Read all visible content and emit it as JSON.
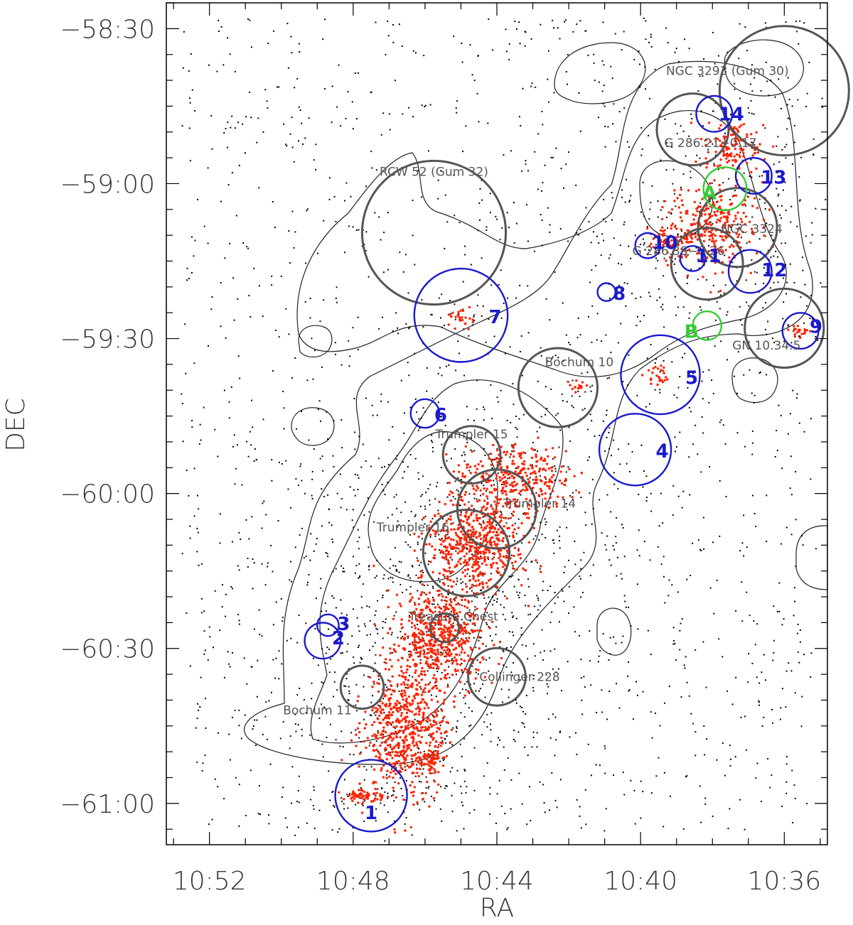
{
  "chart_data": {
    "type": "scatter",
    "xlabel": "RA",
    "ylabel": "DEC",
    "x_ticks": [
      "10:52",
      "10:48",
      "10:44",
      "10:40",
      "10:36"
    ],
    "x_tick_values_min": [
      652,
      648,
      644,
      640,
      636
    ],
    "y_ticks": [
      "−58:30",
      "−59:00",
      "−59:30",
      "−60:00",
      "−60:30",
      "−61:00"
    ],
    "y_tick_values_min": [
      -3510,
      -3540,
      -3570,
      -3600,
      -3630,
      -3660
    ],
    "xlim_min": [
      653.2,
      634.8
    ],
    "ylim_min": [
      -3668,
      -3505
    ],
    "x_axis_reversed": true,
    "colors": {
      "field_points": "#000000",
      "member_points": "#ff2200",
      "numbered_regions": "#1a1acc",
      "named_regions": "#555555",
      "green_regions": "#33cc33",
      "contours": "#222222"
    },
    "named_regions": [
      {
        "label": "NGC 3293 (Gum 30)",
        "ra_min": 636.0,
        "dec_min": -3522.0,
        "r_min": 1.8
      },
      {
        "label": "G 286.21+0.17",
        "ra_min": 638.55,
        "dec_min": -3529.5,
        "r_min": 1.0
      },
      {
        "label": "RCW 52 (Gum 32)",
        "ra_min": 645.75,
        "dec_min": -3549.5,
        "r_min": 2.0
      },
      {
        "label": "NGC 3324",
        "ra_min": 637.3,
        "dec_min": -3548.5,
        "r_min": 1.1
      },
      {
        "label": "G 286.38−0.26",
        "ra_min": 638.15,
        "dec_min": -3555.5,
        "r_min": 1.0
      },
      {
        "label": "GN 10.34.5",
        "ra_min": 636.0,
        "dec_min": -3568.0,
        "r_min": 1.1
      },
      {
        "label": "Bochum 10",
        "ra_min": 642.3,
        "dec_min": -3579.5,
        "r_min": 1.1
      },
      {
        "label": "Trumpler 15",
        "ra_min": 644.7,
        "dec_min": -3592.5,
        "r_min": 0.8
      },
      {
        "label": "Trumpler 14",
        "ra_min": 644.0,
        "dec_min": -3603.0,
        "r_min": 1.1
      },
      {
        "label": "Trumpler 16",
        "ra_min": 644.85,
        "dec_min": -3611.5,
        "r_min": 1.2
      },
      {
        "label": "Treasure Chest",
        "ra_min": 645.45,
        "dec_min": -3626.0,
        "r_min": 0.4
      },
      {
        "label": "Collinger 228",
        "ra_min": 644.0,
        "dec_min": -3635.5,
        "r_min": 0.8
      },
      {
        "label": "Bochum 11",
        "ra_min": 647.75,
        "dec_min": -3637.5,
        "r_min": 0.6
      }
    ],
    "numbered_regions": [
      {
        "label": "1",
        "ra_min": 647.5,
        "dec_min": -3658.5,
        "r_min": 1.0
      },
      {
        "label": "2",
        "ra_min": 648.85,
        "dec_min": -3628.5,
        "r_min": 0.5
      },
      {
        "label": "3",
        "ra_min": 648.7,
        "dec_min": -3625.5,
        "r_min": 0.3
      },
      {
        "label": "4",
        "ra_min": 640.15,
        "dec_min": -3591.5,
        "r_min": 1.0
      },
      {
        "label": "5",
        "ra_min": 639.45,
        "dec_min": -3577.0,
        "r_min": 1.1
      },
      {
        "label": "6",
        "ra_min": 646.0,
        "dec_min": -3584.5,
        "r_min": 0.4
      },
      {
        "label": "7",
        "ra_min": 645.0,
        "dec_min": -3565.5,
        "r_min": 1.3
      },
      {
        "label": "8",
        "ra_min": 640.95,
        "dec_min": -3561.0,
        "r_min": 0.25
      },
      {
        "label": "9",
        "ra_min": 635.55,
        "dec_min": -3568.5,
        "r_min": 0.5
      },
      {
        "label": "10",
        "ra_min": 639.8,
        "dec_min": -3552.0,
        "r_min": 0.35
      },
      {
        "label": "11",
        "ra_min": 638.55,
        "dec_min": -3554.5,
        "r_min": 0.35
      },
      {
        "label": "12",
        "ra_min": 636.95,
        "dec_min": -3557.0,
        "r_min": 0.6
      },
      {
        "label": "13",
        "ra_min": 636.85,
        "dec_min": -3538.5,
        "r_min": 0.5
      },
      {
        "label": "14",
        "ra_min": 637.95,
        "dec_min": -3526.5,
        "r_min": 0.5
      }
    ],
    "green_regions": [
      {
        "label": "A",
        "ra_min": 637.65,
        "dec_min": -3541.0,
        "r_min": 0.6
      },
      {
        "label": "B",
        "ra_min": 638.15,
        "dec_min": -3567.5,
        "r_min": 0.4
      }
    ],
    "member_clusters": [
      {
        "ra_min": 646.5,
        "dec_min": -3645.0,
        "spread_ra": 1.0,
        "spread_dec": 12.0,
        "count": 600
      },
      {
        "ra_min": 645.6,
        "dec_min": -3628.0,
        "spread_ra": 1.1,
        "spread_dec": 8.0,
        "count": 520
      },
      {
        "ra_min": 644.6,
        "dec_min": -3610.0,
        "spread_ra": 1.2,
        "spread_dec": 8.0,
        "count": 520
      },
      {
        "ra_min": 643.5,
        "dec_min": -3597.0,
        "spread_ra": 1.4,
        "spread_dec": 6.0,
        "count": 320
      },
      {
        "ra_min": 647.6,
        "dec_min": -3658.6,
        "spread_ra": 0.6,
        "spread_dec": 1.0,
        "count": 60
      },
      {
        "ra_min": 645.8,
        "dec_min": -3652.0,
        "spread_ra": 0.3,
        "spread_dec": 2.0,
        "count": 50
      },
      {
        "ra_min": 638.0,
        "dec_min": -3548.0,
        "spread_ra": 1.2,
        "spread_dec": 7.0,
        "count": 260
      },
      {
        "ra_min": 637.5,
        "dec_min": -3533.0,
        "spread_ra": 0.8,
        "spread_dec": 5.0,
        "count": 120
      },
      {
        "ra_min": 639.2,
        "dec_min": -3551.0,
        "spread_ra": 0.6,
        "spread_dec": 2.0,
        "count": 60
      },
      {
        "ra_min": 639.5,
        "dec_min": -3577.0,
        "spread_ra": 0.3,
        "spread_dec": 2.0,
        "count": 25
      },
      {
        "ra_min": 645.0,
        "dec_min": -3566.0,
        "spread_ra": 0.4,
        "spread_dec": 2.0,
        "count": 25
      },
      {
        "ra_min": 635.55,
        "dec_min": -3568.5,
        "spread_ra": 0.3,
        "spread_dec": 1.0,
        "count": 20
      },
      {
        "ra_min": 641.8,
        "dec_min": -3579.5,
        "spread_ra": 0.3,
        "spread_dec": 1.0,
        "count": 15
      }
    ],
    "grid": false
  }
}
